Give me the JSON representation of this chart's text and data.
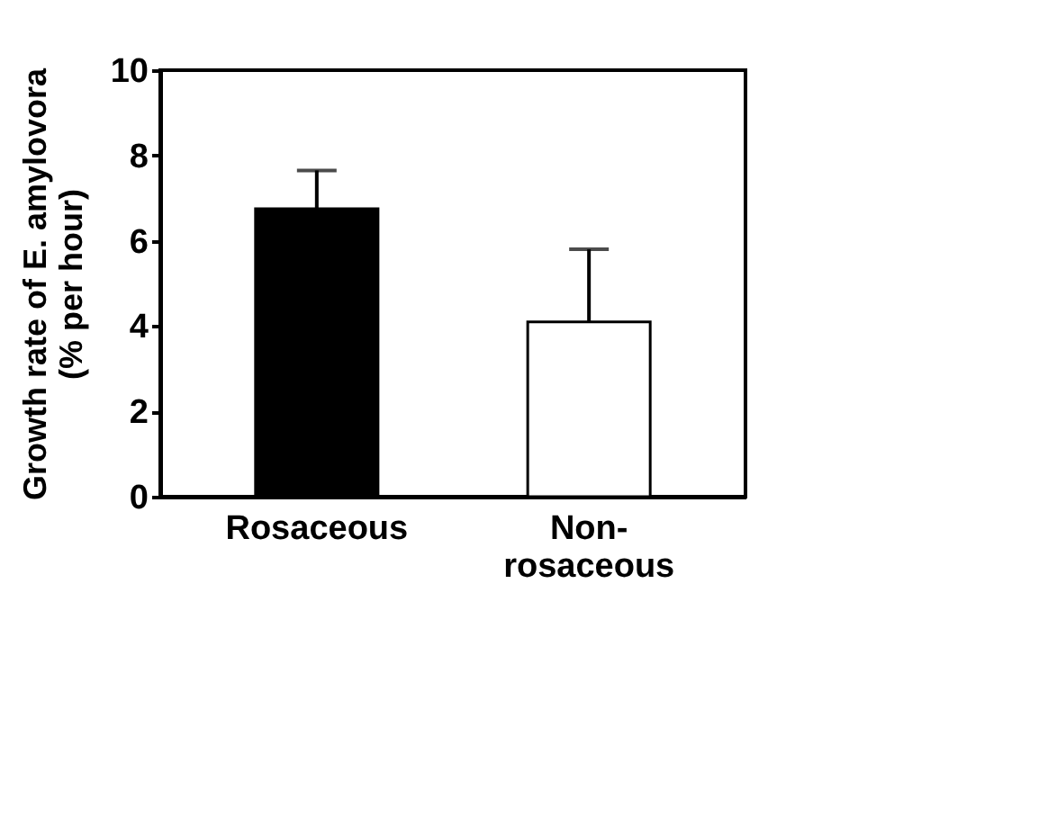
{
  "chart_data": {
    "type": "bar",
    "ylabel": "Growth rate of E. amylovora\n(% per hour)",
    "categories": [
      "Rosaceous",
      "Non-rosaceous"
    ],
    "values": [
      6.75,
      4.1
    ],
    "colors": [
      "#000000",
      "#ffffff"
    ],
    "errors": [
      [
        6.75,
        7.65
      ],
      [
        4.1,
        5.8
      ]
    ],
    "ylim": [
      0,
      10
    ],
    "yticks": [
      0,
      2,
      4,
      6,
      8,
      10
    ],
    "grid": false
  }
}
